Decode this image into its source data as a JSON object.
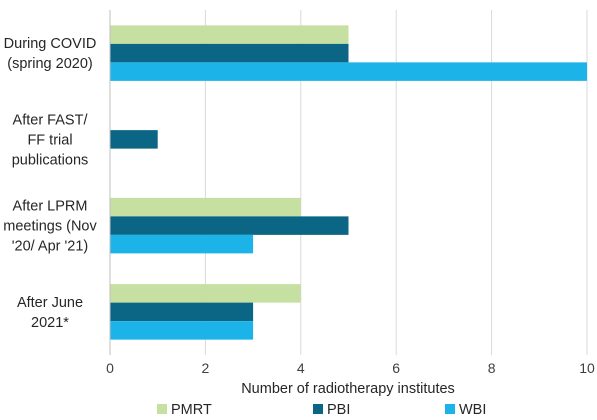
{
  "chart_data": {
    "type": "bar",
    "orientation": "horizontal",
    "categories": [
      [
        "During COVID",
        "(spring 2020)"
      ],
      [
        "After FAST/",
        "FF trial",
        "publications"
      ],
      [
        "After LPRM",
        "meetings (Nov",
        "'20/ Apr '21)"
      ],
      [
        "After June",
        "2021*"
      ]
    ],
    "series": [
      {
        "name": "PMRT",
        "color": "#c5e0a0",
        "values": [
          5,
          0,
          4,
          4
        ]
      },
      {
        "name": "PBI",
        "color": "#0b6585",
        "values": [
          5,
          1,
          5,
          3
        ]
      },
      {
        "name": "WBI",
        "color": "#1cb3e8",
        "values": [
          10,
          0,
          3,
          3
        ]
      }
    ],
    "xlabel": "Number  of radiotherapy institutes",
    "xlim": [
      0,
      10
    ],
    "xticks": [
      0,
      2,
      4,
      6,
      8,
      10
    ],
    "grid": "vertical",
    "legend_position": "bottom"
  }
}
